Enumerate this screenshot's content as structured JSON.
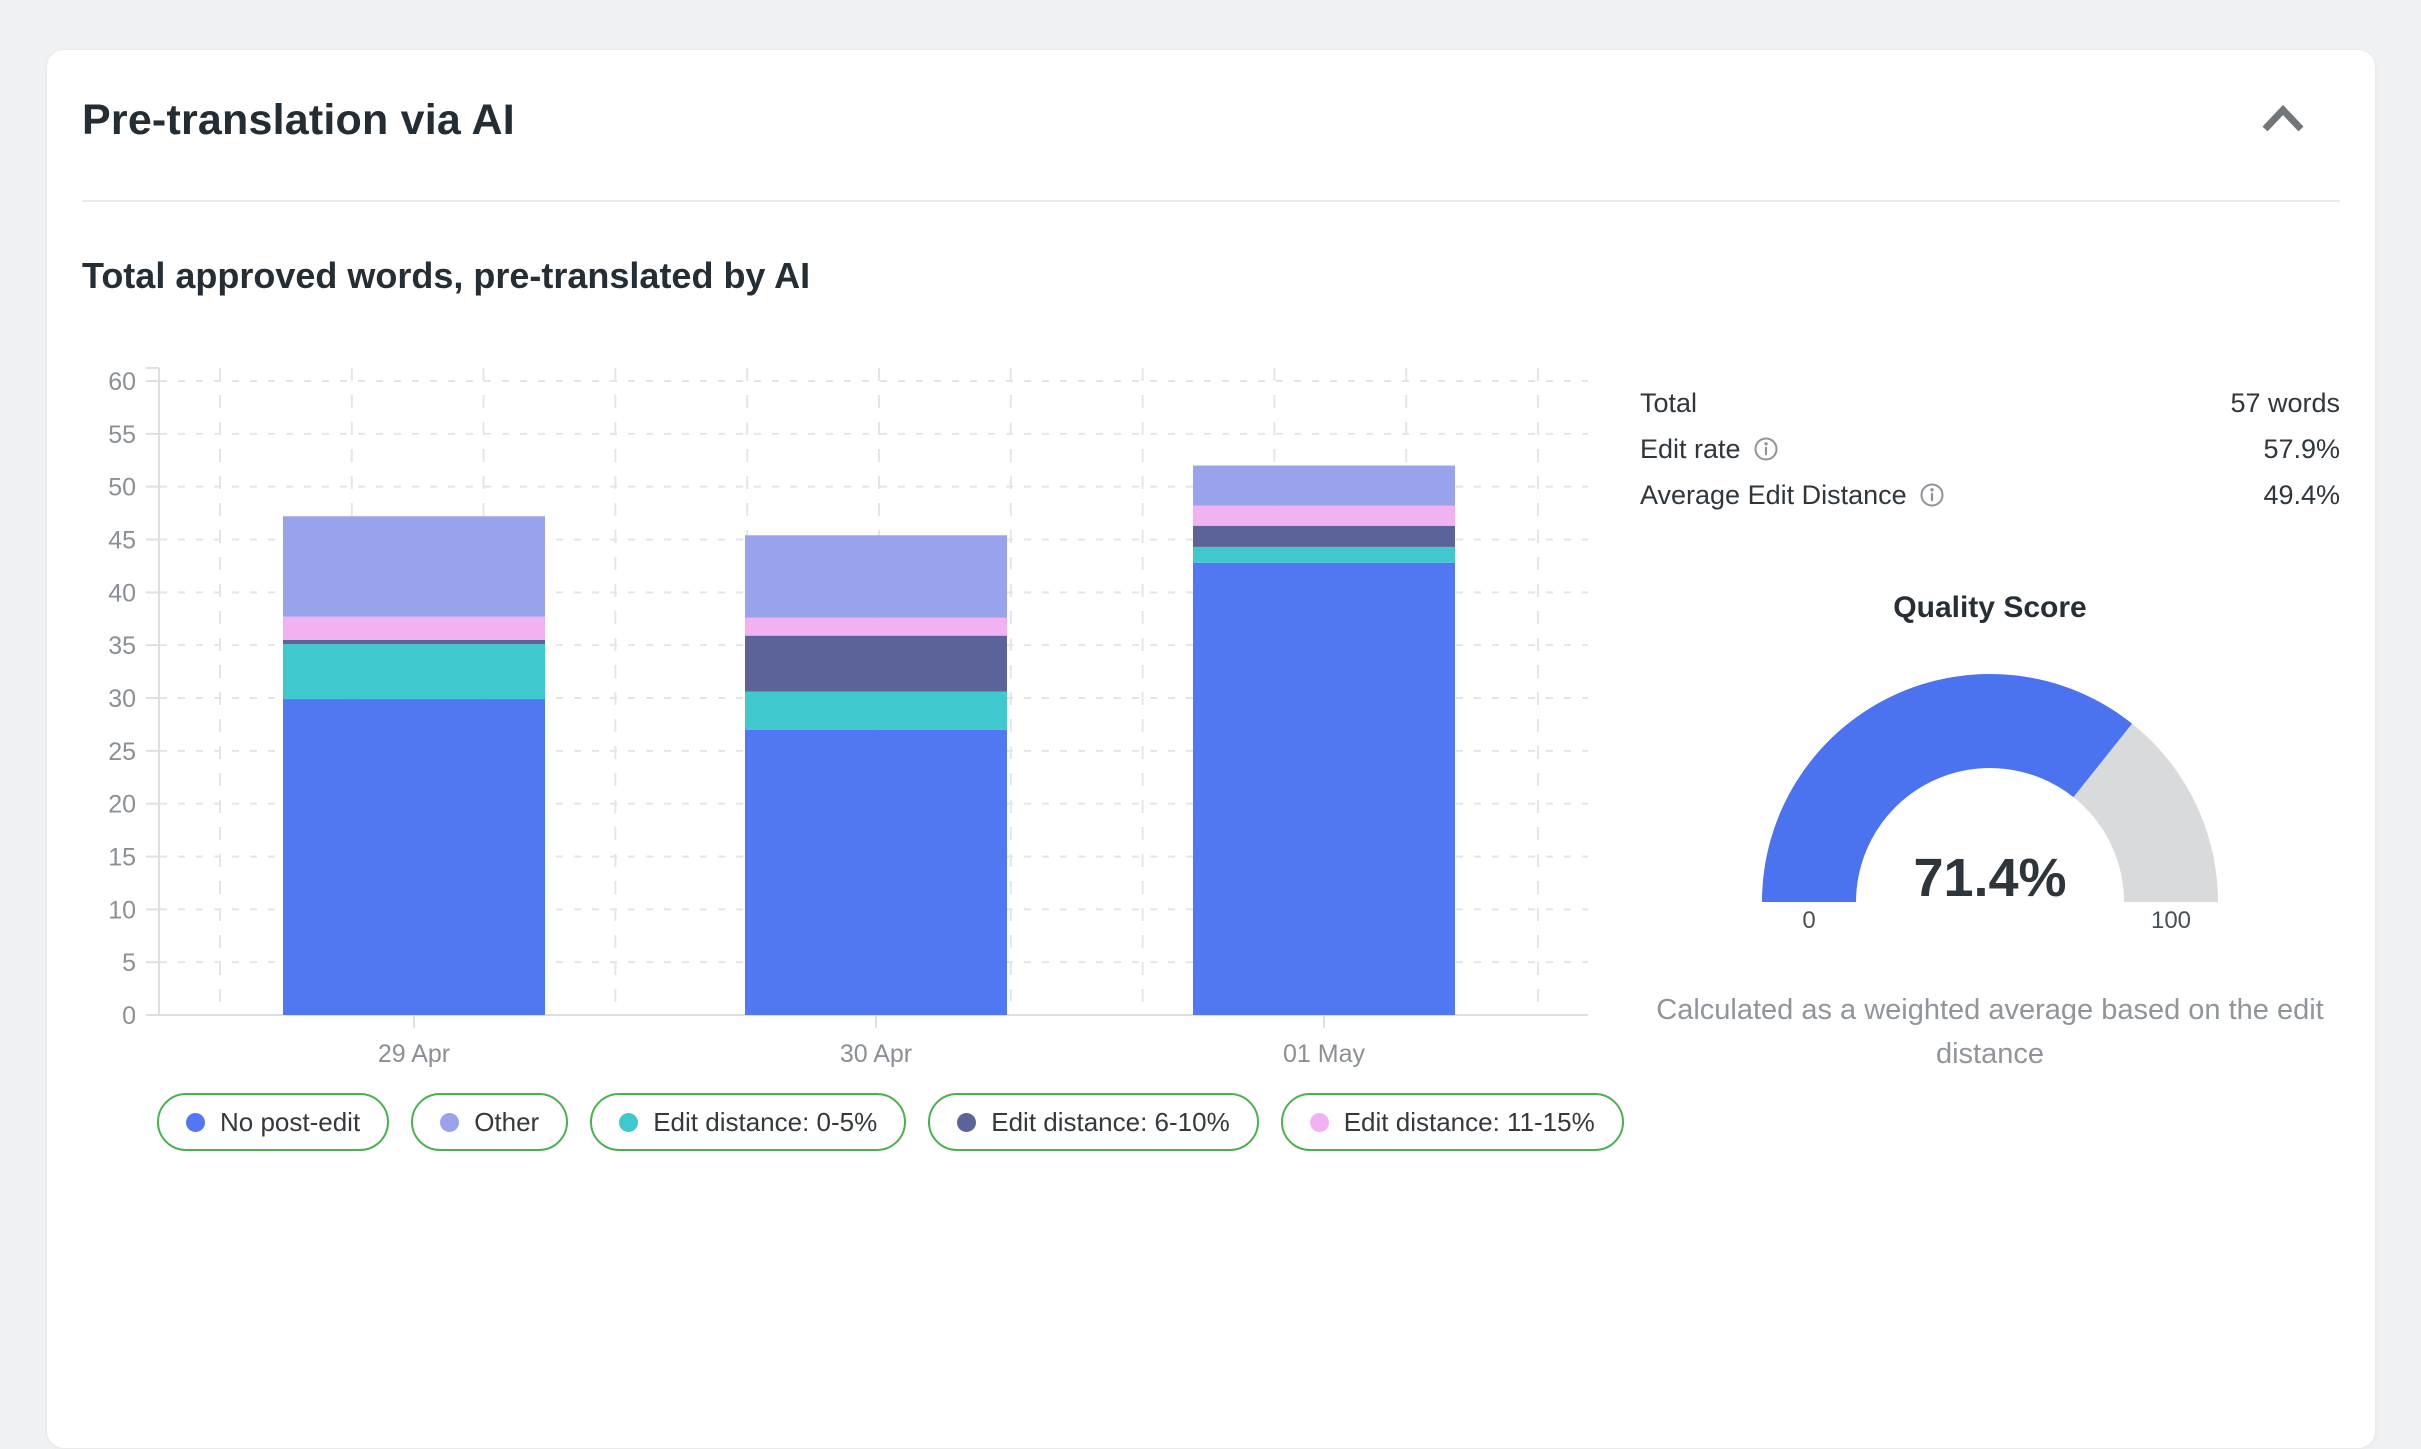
{
  "page": {
    "background": "#eff1f3"
  },
  "card": {
    "title": "Pre-translation via AI",
    "section_title": "Total approved words, pre-translated by AI",
    "collapse_icon": "chevron-up"
  },
  "chart_data": {
    "type": "bar",
    "stacked": true,
    "title": "Total approved words, pre-translated by AI",
    "categories": [
      "29 Apr",
      "30 Apr",
      "01 May"
    ],
    "series": [
      {
        "name": "No post-edit",
        "color": "#5277f2",
        "values": [
          29.9,
          27.0,
          42.8
        ]
      },
      {
        "name": "Edit distance: 0-5%",
        "color": "#3fc9cf",
        "values": [
          5.2,
          3.6,
          1.5
        ]
      },
      {
        "name": "Edit distance: 6-10%",
        "color": "#5c6399",
        "values": [
          0.4,
          5.3,
          2.0
        ]
      },
      {
        "name": "Edit distance: 11-15%",
        "color": "#f2b2f2",
        "values": [
          2.2,
          1.7,
          1.9
        ]
      },
      {
        "name": "Other",
        "color": "#99a3ec",
        "values": [
          9.5,
          7.8,
          3.8
        ]
      }
    ],
    "totals": [
      47.2,
      45.4,
      52.0
    ],
    "ylabel": "",
    "xlabel": "",
    "ylim": [
      0,
      62
    ],
    "ytick_step": 5,
    "ytick_max": 60,
    "grid": "dashed",
    "legend_position": "bottom",
    "legend_order": [
      "No post-edit",
      "Other",
      "Edit distance: 0-5%",
      "Edit distance: 6-10%",
      "Edit distance: 11-15%"
    ],
    "legend_border_color": "#4caf50"
  },
  "stats": {
    "rows": [
      {
        "label": "Total",
        "value": "57 words",
        "info": false
      },
      {
        "label": "Edit rate",
        "value": "57.9%",
        "info": true
      },
      {
        "label": "Average Edit Distance",
        "value": "49.4%",
        "info": true
      }
    ]
  },
  "gauge": {
    "title": "Quality Score",
    "value": 71.4,
    "value_label": "71.4%",
    "min_label": "0",
    "max_label": "100",
    "fill_color": "#4b72ef",
    "track_color": "#d8dadc",
    "caption": "Calculated as a weighted average based on the edit distance"
  }
}
